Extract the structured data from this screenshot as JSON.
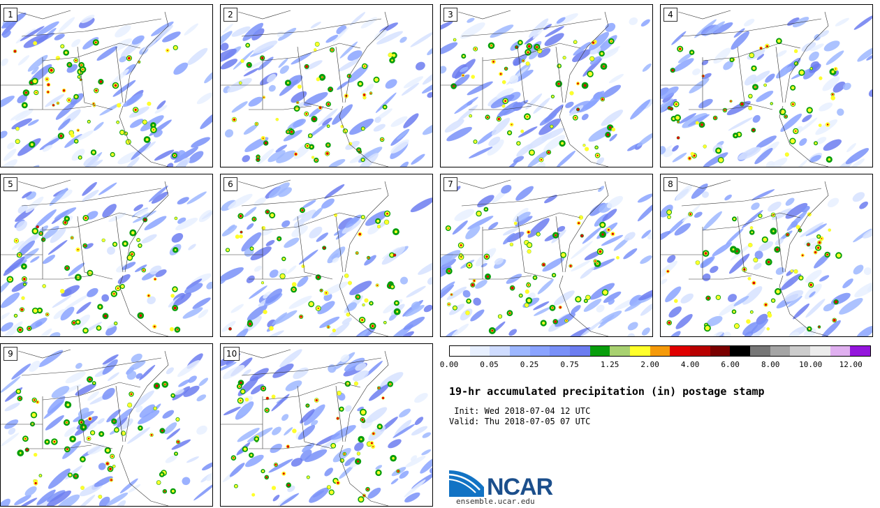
{
  "panels": [
    {
      "label": "1"
    },
    {
      "label": "2"
    },
    {
      "label": "3"
    },
    {
      "label": "4"
    },
    {
      "label": "5"
    },
    {
      "label": "6"
    },
    {
      "label": "7"
    },
    {
      "label": "8"
    },
    {
      "label": "9"
    },
    {
      "label": "10"
    }
  ],
  "colorbar": {
    "colors": [
      "#ffffff",
      "#e8f0ff",
      "#cfdcff",
      "#9db7ff",
      "#8aa3ff",
      "#7990f8",
      "#6c7df0",
      "#089e0c",
      "#a8d170",
      "#ffff2a",
      "#f59a0a",
      "#e00000",
      "#b80000",
      "#7a0000",
      "#000000",
      "#777777",
      "#a5a5a5",
      "#cccccc",
      "#ececec",
      "#e0b0f0",
      "#9416dc"
    ],
    "tick_labels": [
      "0.00",
      "0.05",
      "0.25",
      "0.75",
      "1.25",
      "2.00",
      "4.00",
      "6.00",
      "8.00",
      "10.00",
      "12.00"
    ]
  },
  "title": "19-hr accumulated precipitation (in) postage stamp",
  "init_line": " Init: Wed 2018-07-04 12 UTC",
  "valid_line": "Valid: Thu 2018-07-05 07 UTC",
  "logo": {
    "text": "NCAR",
    "color": "#1c4f8c",
    "accent": "#1273c4"
  },
  "site": "ensemble.ucar.edu"
}
